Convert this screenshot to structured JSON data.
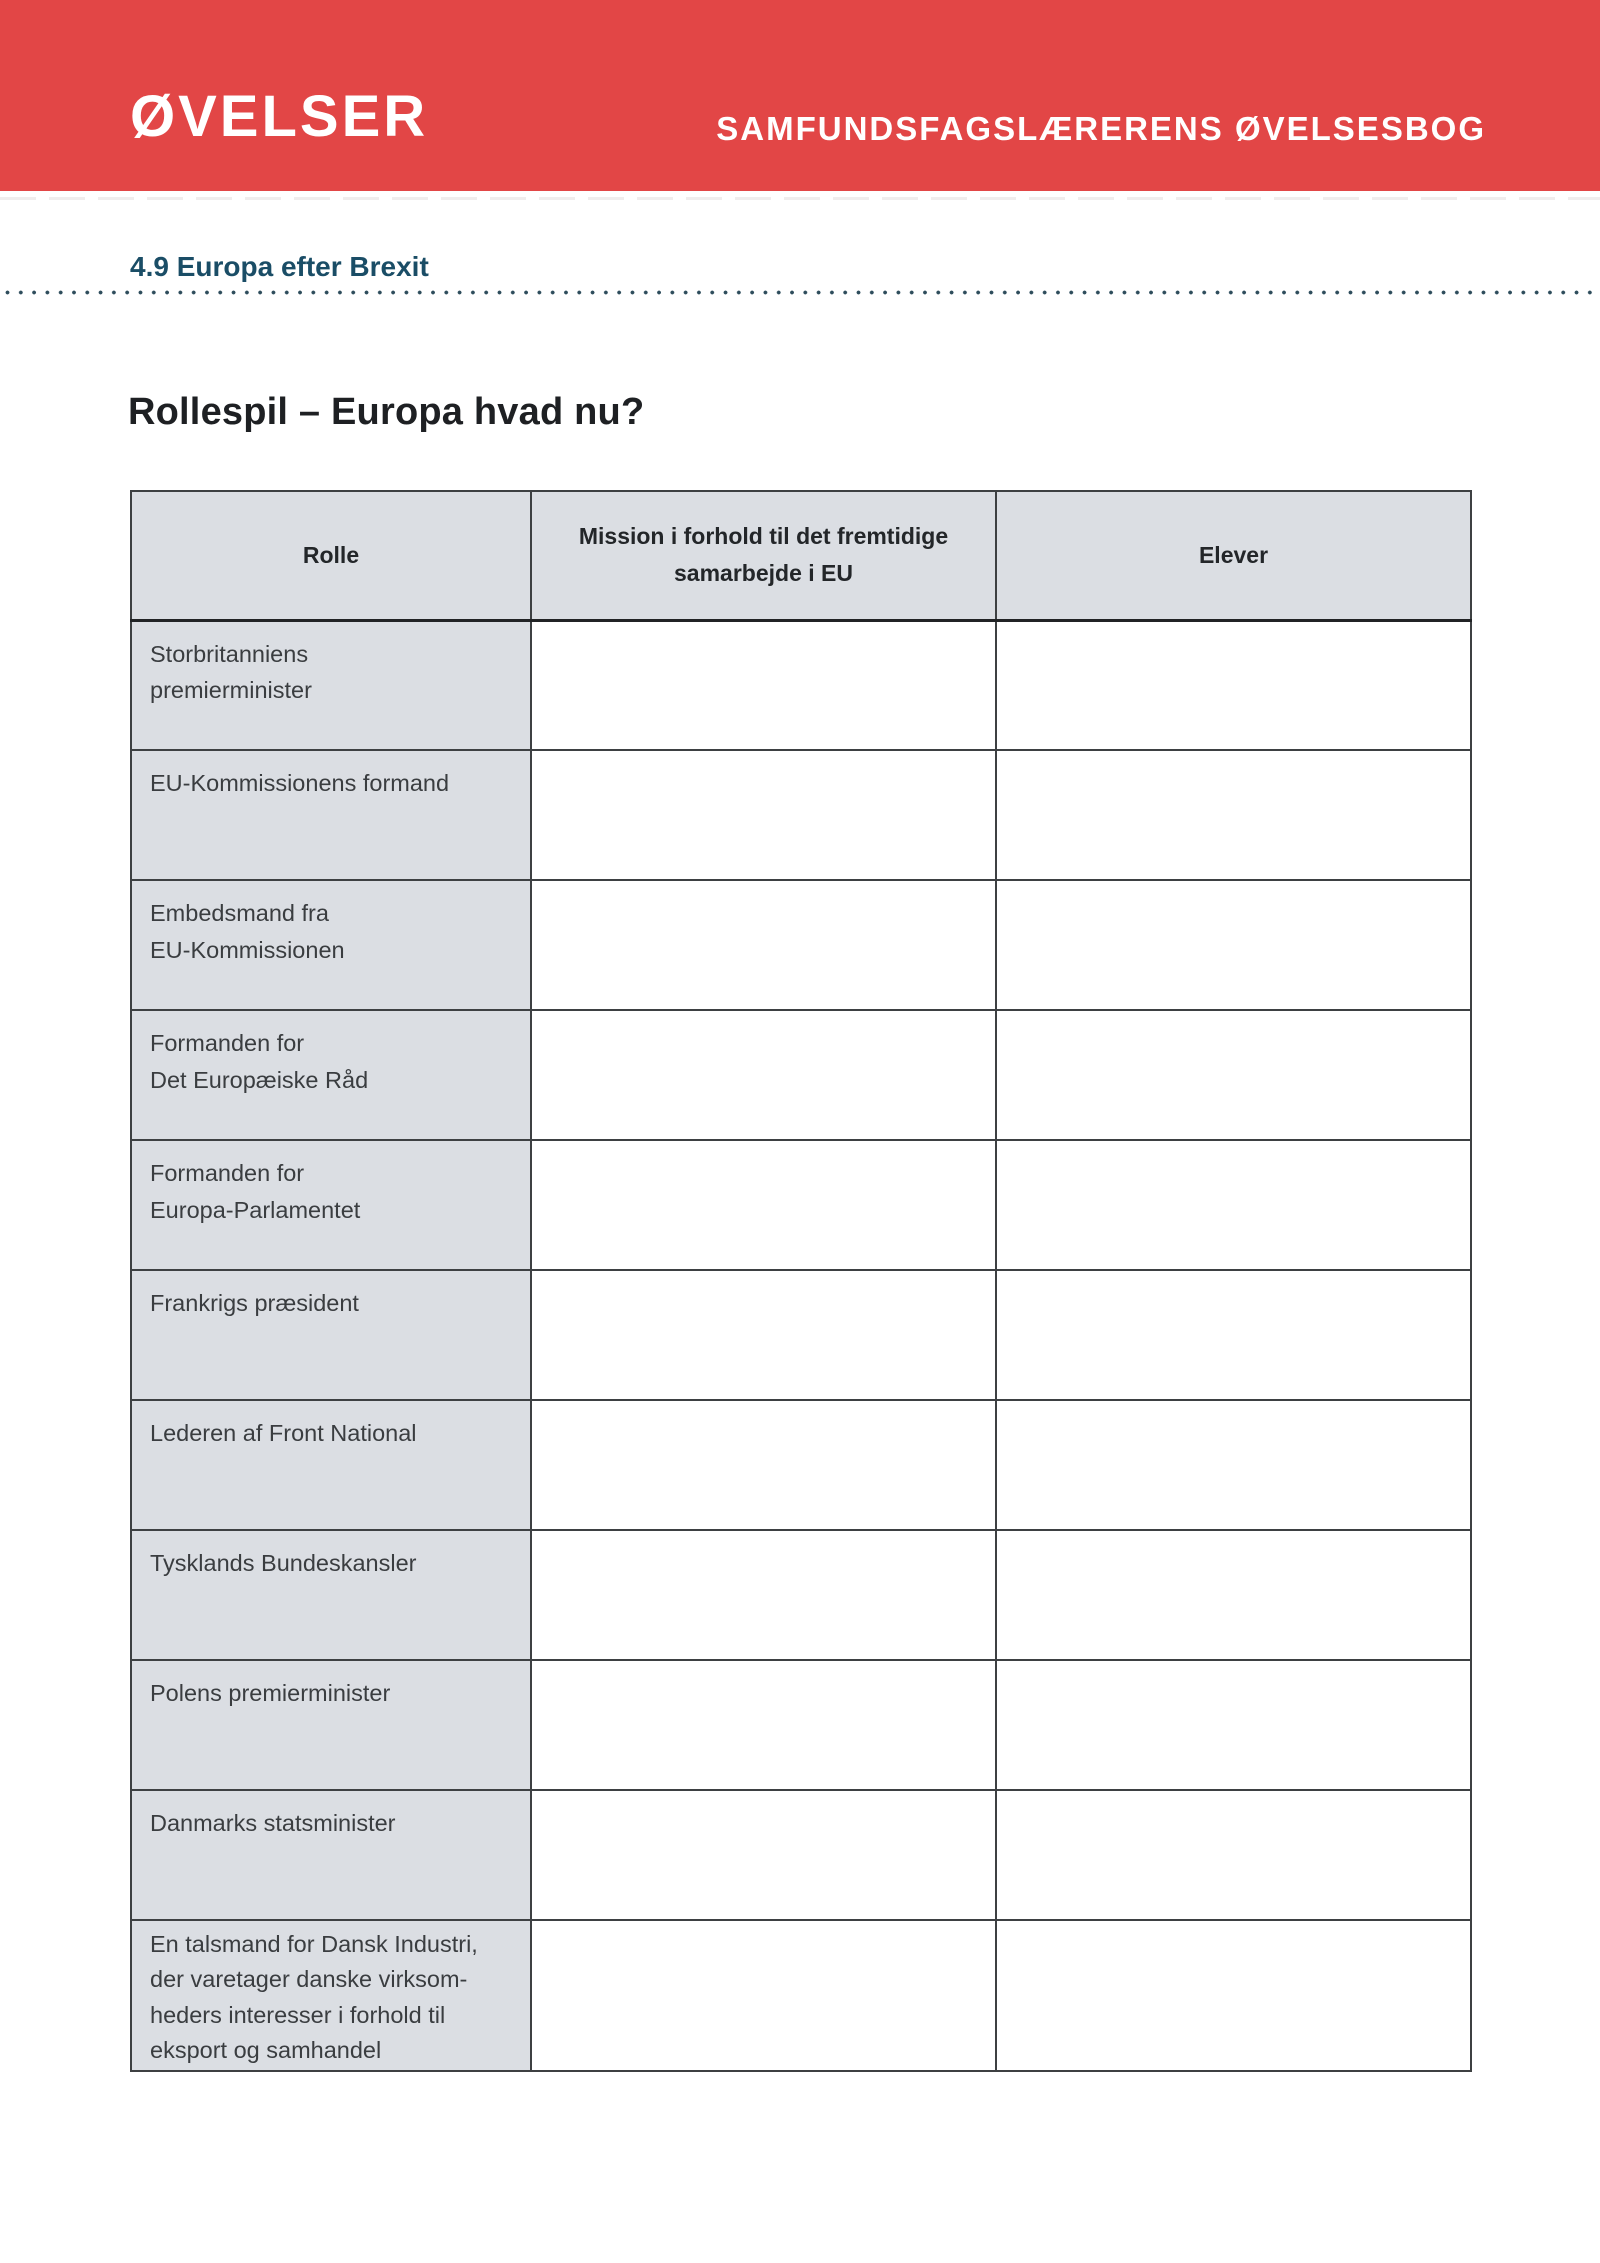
{
  "banner": {
    "series_label": "ØVELSER",
    "book_title": "SAMFUNDSFAGSLÆRERENS ØVELSESBOG"
  },
  "section": {
    "title": "4.9 Europa efter Brexit"
  },
  "activity": {
    "heading": "Rollespil – Europa hvad nu?"
  },
  "table": {
    "headers": {
      "role": "Rolle",
      "mission": "Mission i forhold til det fremtidige\nsamarbejde i EU",
      "students": "Elever"
    },
    "rows": [
      {
        "role": "Storbritanniens\npremierminister",
        "mission": "",
        "students": ""
      },
      {
        "role": "EU-Kommissionens formand",
        "mission": "",
        "students": ""
      },
      {
        "role": "Embedsmand fra\nEU-Kommissionen",
        "mission": "",
        "students": ""
      },
      {
        "role": "Formanden for\nDet Europæiske Råd",
        "mission": "",
        "students": ""
      },
      {
        "role": "Formanden for\nEuropa-Parlamentet",
        "mission": "",
        "students": ""
      },
      {
        "role": "Frankrigs præsident",
        "mission": "",
        "students": ""
      },
      {
        "role": "Lederen af Front National",
        "mission": "",
        "students": ""
      },
      {
        "role": "Tysklands Bundeskansler",
        "mission": "",
        "students": ""
      },
      {
        "role": "Polens premierminister",
        "mission": "",
        "students": ""
      },
      {
        "role": "Danmarks statsminister",
        "mission": "",
        "students": ""
      },
      {
        "role": "En talsmand for Dansk Industri,\nder varetager danske virksom-\nheders interesser i forhold til\neksport og samhandel",
        "mission": "",
        "students": ""
      }
    ]
  },
  "colors": {
    "banner_red": "#e24646",
    "section_teal": "#1a4d66",
    "cell_gray": "#dbdee3",
    "border_dark": "#3d4042",
    "dotted_line": "#2e4d5c"
  }
}
